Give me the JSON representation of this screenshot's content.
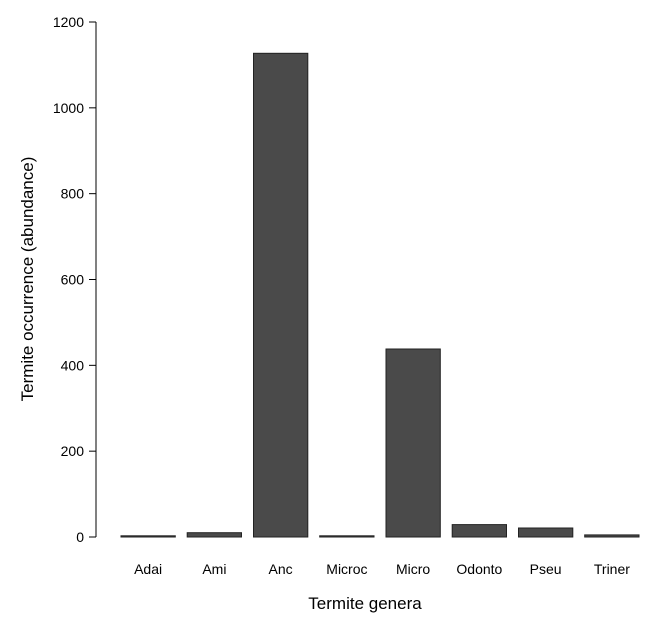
{
  "chart_data": {
    "type": "bar",
    "title": "",
    "xlabel": "Termite genera",
    "ylabel": "Termite occurrence (abundance)",
    "categories": [
      "Adai",
      "Ami",
      "Anc",
      "Microc",
      "Micro",
      "Odonto",
      "Pseu",
      "Triner"
    ],
    "values": [
      2,
      10,
      1127,
      2,
      438,
      29,
      21,
      5
    ],
    "ylim": [
      0,
      1200
    ],
    "yticks": [
      0,
      200,
      400,
      600,
      800,
      1000,
      1200
    ],
    "grid": false,
    "legend": "none",
    "colors": {
      "bar_fill": "#4a4a4a",
      "bar_stroke": "#222222",
      "axis": "#000000"
    }
  }
}
